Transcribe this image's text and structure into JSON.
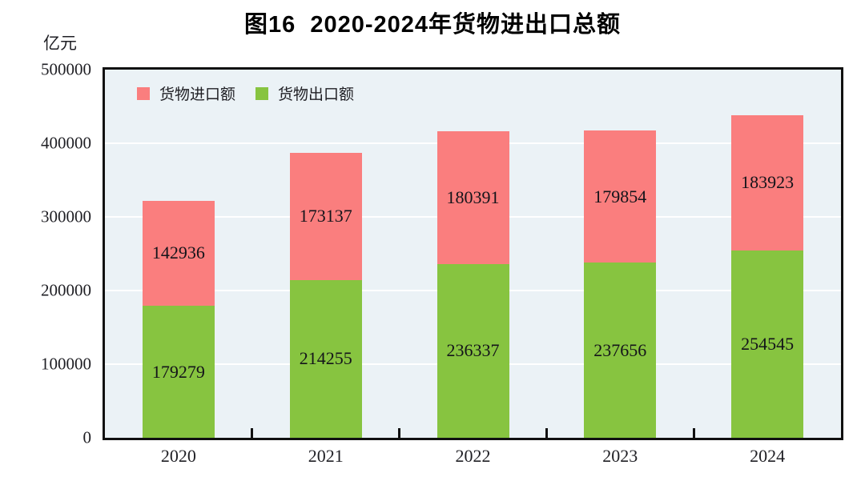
{
  "title": "图16  2020-2024年货物进出口总额",
  "unit_label": "亿元",
  "legend": [
    {
      "id": "import",
      "label": "货物进口额",
      "color": "#FA7E7E"
    },
    {
      "id": "export",
      "label": "货物出口额",
      "color": "#87C440"
    }
  ],
  "chart_data": {
    "type": "bar",
    "stacked": true,
    "title": "图16 2020-2024年货物进出口总额",
    "ylabel": "亿元",
    "categories": [
      "2020",
      "2021",
      "2022",
      "2023",
      "2024"
    ],
    "series": [
      {
        "id": "export",
        "name": "货物出口额",
        "color": "#87C440",
        "values": [
          179279,
          214255,
          236337,
          237656,
          254545
        ]
      },
      {
        "id": "import",
        "name": "货物进口额",
        "color": "#FA7E7E",
        "values": [
          142936,
          173137,
          180391,
          179854,
          183923
        ]
      }
    ],
    "ylim": [
      0,
      500000
    ],
    "yticks": [
      0,
      100000,
      200000,
      300000,
      400000,
      500000
    ],
    "grid": true,
    "gridline_color": "#FFFFFF",
    "plot_background": "#EBF2F6",
    "legend_position": "top-left-inside"
  }
}
